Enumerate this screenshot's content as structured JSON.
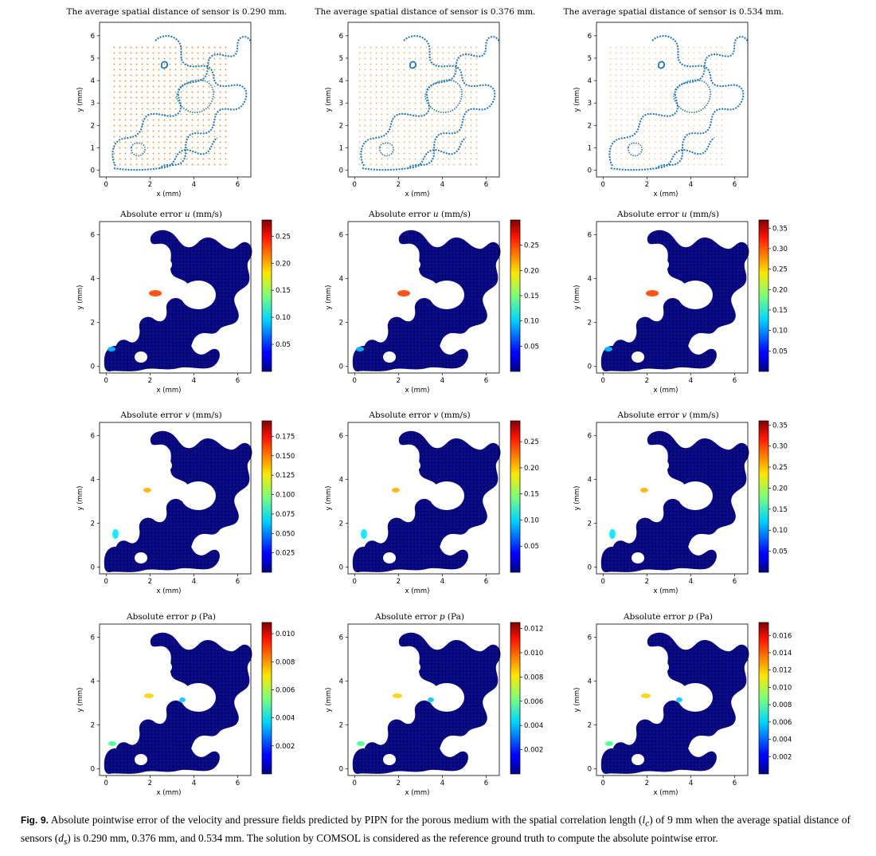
{
  "figure": {
    "columns": [
      {
        "sensor_title": "The average spatial distance of sensor is 0.290 mm."
      },
      {
        "sensor_title": "The average spatial distance of sensor is 0.376 mm."
      },
      {
        "sensor_title": "The average spatial distance of sensor is 0.534 mm."
      }
    ],
    "rows": [
      {
        "title_prefix": "Absolute error ",
        "var": "u",
        "unit": " (mm/s)"
      },
      {
        "title_prefix": "Absolute error ",
        "var": "v",
        "unit": " (mm/s)"
      },
      {
        "title_prefix": "Absolute error ",
        "var": "p",
        "unit": " (Pa)"
      }
    ],
    "xlabel": "x (mm)",
    "ylabel": "y (mm)"
  },
  "chart_data": [
    {
      "type": "scatter",
      "title": "The average spatial distance of sensor is 0.290 mm.",
      "xlabel": "x (mm)",
      "ylabel": "y (mm)",
      "xlim": [
        -0.3,
        6.6
      ],
      "ylim": [
        -0.3,
        6.6
      ],
      "xticks": [
        0,
        2,
        4,
        6
      ],
      "yticks": [
        0,
        1,
        2,
        3,
        4,
        5,
        6
      ]
    },
    {
      "type": "scatter",
      "title": "The average spatial distance of sensor is 0.376 mm.",
      "xlabel": "x (mm)",
      "ylabel": "y (mm)",
      "xlim": [
        -0.3,
        6.6
      ],
      "ylim": [
        -0.3,
        6.6
      ],
      "xticks": [
        0,
        2,
        4,
        6
      ],
      "yticks": [
        0,
        1,
        2,
        3,
        4,
        5,
        6
      ]
    },
    {
      "type": "scatter",
      "title": "The average spatial distance of sensor is 0.534 mm.",
      "xlabel": "x (mm)",
      "ylabel": "y (mm)",
      "xlim": [
        -0.3,
        6.6
      ],
      "ylim": [
        -0.3,
        6.6
      ],
      "xticks": [
        0,
        2,
        4,
        6
      ],
      "yticks": [
        0,
        1,
        2,
        3,
        4,
        5,
        6
      ]
    },
    {
      "type": "heatmap",
      "title": "Absolute error u (mm/s)",
      "xlabel": "x (mm)",
      "ylabel": "y (mm)",
      "xticks": [
        0,
        2,
        4,
        6
      ],
      "yticks": [
        0,
        2,
        4,
        6
      ],
      "colorbar": {
        "min": 0,
        "max": 0.28,
        "ticks": [
          "0.05",
          "0.10",
          "0.15",
          "0.20",
          "0.25"
        ]
      }
    },
    {
      "type": "heatmap",
      "title": "Absolute error u (mm/s)",
      "xlabel": "x (mm)",
      "ylabel": "y (mm)",
      "xticks": [
        0,
        2,
        4,
        6
      ],
      "yticks": [
        0,
        2,
        4,
        6
      ],
      "colorbar": {
        "min": 0,
        "max": 0.3,
        "ticks": [
          "0.05",
          "0.10",
          "0.15",
          "0.20",
          "0.25"
        ]
      }
    },
    {
      "type": "heatmap",
      "title": "Absolute error u (mm/s)",
      "xlabel": "x (mm)",
      "ylabel": "y (mm)",
      "xticks": [
        0,
        2,
        4,
        6
      ],
      "yticks": [
        0,
        2,
        4,
        6
      ],
      "colorbar": {
        "min": 0,
        "max": 0.37,
        "ticks": [
          "0.05",
          "0.10",
          "0.15",
          "0.20",
          "0.25",
          "0.30",
          "0.35"
        ]
      }
    },
    {
      "type": "heatmap",
      "title": "Absolute error v (mm/s)",
      "xlabel": "x (mm)",
      "ylabel": "y (mm)",
      "xticks": [
        0,
        2,
        4,
        6
      ],
      "yticks": [
        0,
        2,
        4,
        6
      ],
      "colorbar": {
        "min": 0,
        "max": 0.195,
        "ticks": [
          "0.025",
          "0.050",
          "0.075",
          "0.100",
          "0.125",
          "0.150",
          "0.175"
        ]
      }
    },
    {
      "type": "heatmap",
      "title": "Absolute error v (mm/s)",
      "xlabel": "x (mm)",
      "ylabel": "y (mm)",
      "xticks": [
        0,
        2,
        4,
        6
      ],
      "yticks": [
        0,
        2,
        4,
        6
      ],
      "colorbar": {
        "min": 0,
        "max": 0.29,
        "ticks": [
          "0.05",
          "0.10",
          "0.15",
          "0.20",
          "0.25"
        ]
      }
    },
    {
      "type": "heatmap",
      "title": "Absolute error v (mm/s)",
      "xlabel": "x (mm)",
      "ylabel": "y (mm)",
      "xticks": [
        0,
        2,
        4,
        6
      ],
      "yticks": [
        0,
        2,
        4,
        6
      ],
      "colorbar": {
        "min": 0,
        "max": 0.36,
        "ticks": [
          "0.05",
          "0.10",
          "0.15",
          "0.20",
          "0.25",
          "0.30",
          "0.35"
        ]
      }
    },
    {
      "type": "heatmap",
      "title": "Absolute error p (Pa)",
      "xlabel": "x (mm)",
      "ylabel": "y (mm)",
      "xticks": [
        0,
        2,
        4,
        6
      ],
      "yticks": [
        0,
        2,
        4,
        6
      ],
      "colorbar": {
        "min": 0,
        "max": 0.0108,
        "ticks": [
          "0.002",
          "0.004",
          "0.006",
          "0.008",
          "0.010"
        ]
      }
    },
    {
      "type": "heatmap",
      "title": "Absolute error p (Pa)",
      "xlabel": "x (mm)",
      "ylabel": "y (mm)",
      "xticks": [
        0,
        2,
        4,
        6
      ],
      "yticks": [
        0,
        2,
        4,
        6
      ],
      "colorbar": {
        "min": 0,
        "max": 0.0125,
        "ticks": [
          "0.002",
          "0.004",
          "0.006",
          "0.008",
          "0.010",
          "0.012"
        ]
      }
    },
    {
      "type": "heatmap",
      "title": "Absolute error p (Pa)",
      "xlabel": "x (mm)",
      "ylabel": "y (mm)",
      "xticks": [
        0,
        2,
        4,
        6
      ],
      "yticks": [
        0,
        2,
        4,
        6
      ],
      "colorbar": {
        "min": 0,
        "max": 0.0175,
        "ticks": [
          "0.002",
          "0.004",
          "0.006",
          "0.008",
          "0.010",
          "0.012",
          "0.014",
          "0.016"
        ]
      }
    }
  ],
  "caption": {
    "label": "Fig. 9.",
    "t1": " Absolute pointwise error of the velocity and pressure fields predicted by PIPN for the porous medium with the spatial correlation length (",
    "sym1": "l",
    "sub1": "c",
    "t2": ") of 9 mm when the average spatial distance of sensors (",
    "sym2": "d",
    "sub2": "s",
    "t3": ") is 0.290 mm, 0.376 mm, and 0.534 mm. The solution by COMSOL is considered as the reference ground truth to compute the absolute pointwise error."
  }
}
